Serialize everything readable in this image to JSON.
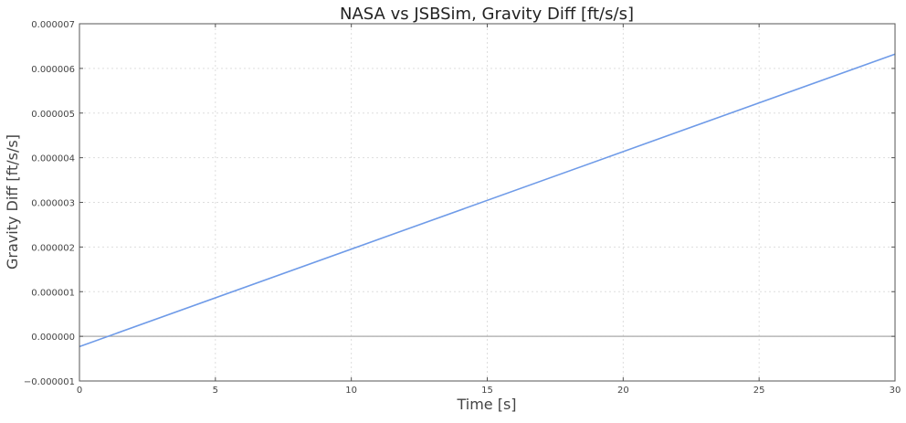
{
  "chart_data": {
    "type": "line",
    "title": "NASA vs JSBSim, Gravity Diff [ft/s/s]",
    "xlabel": "Time [s]",
    "ylabel": "Gravity Diff [ft/s/s]",
    "xlim": [
      0,
      30
    ],
    "ylim": [
      -1e-06,
      7e-06
    ],
    "x_ticks": [
      0,
      5,
      10,
      15,
      20,
      25,
      30
    ],
    "x_tick_labels": [
      "0",
      "5",
      "10",
      "15",
      "20",
      "25",
      "30"
    ],
    "y_ticks": [
      -1e-06,
      0,
      1e-06,
      2e-06,
      3e-06,
      4e-06,
      5e-06,
      6e-06,
      7e-06
    ],
    "y_tick_labels": [
      "−0.000001",
      "0.000000",
      "0.000001",
      "0.000002",
      "0.000003",
      "0.000004",
      "0.000005",
      "0.000006",
      "0.000007"
    ],
    "grid": true,
    "reference_line": {
      "y": 0,
      "color": "#aaaaaa"
    },
    "series": [
      {
        "color": "#6f9be8",
        "x": [
          0,
          30
        ],
        "y": [
          -2.3e-07,
          6.32e-06
        ]
      }
    ]
  }
}
